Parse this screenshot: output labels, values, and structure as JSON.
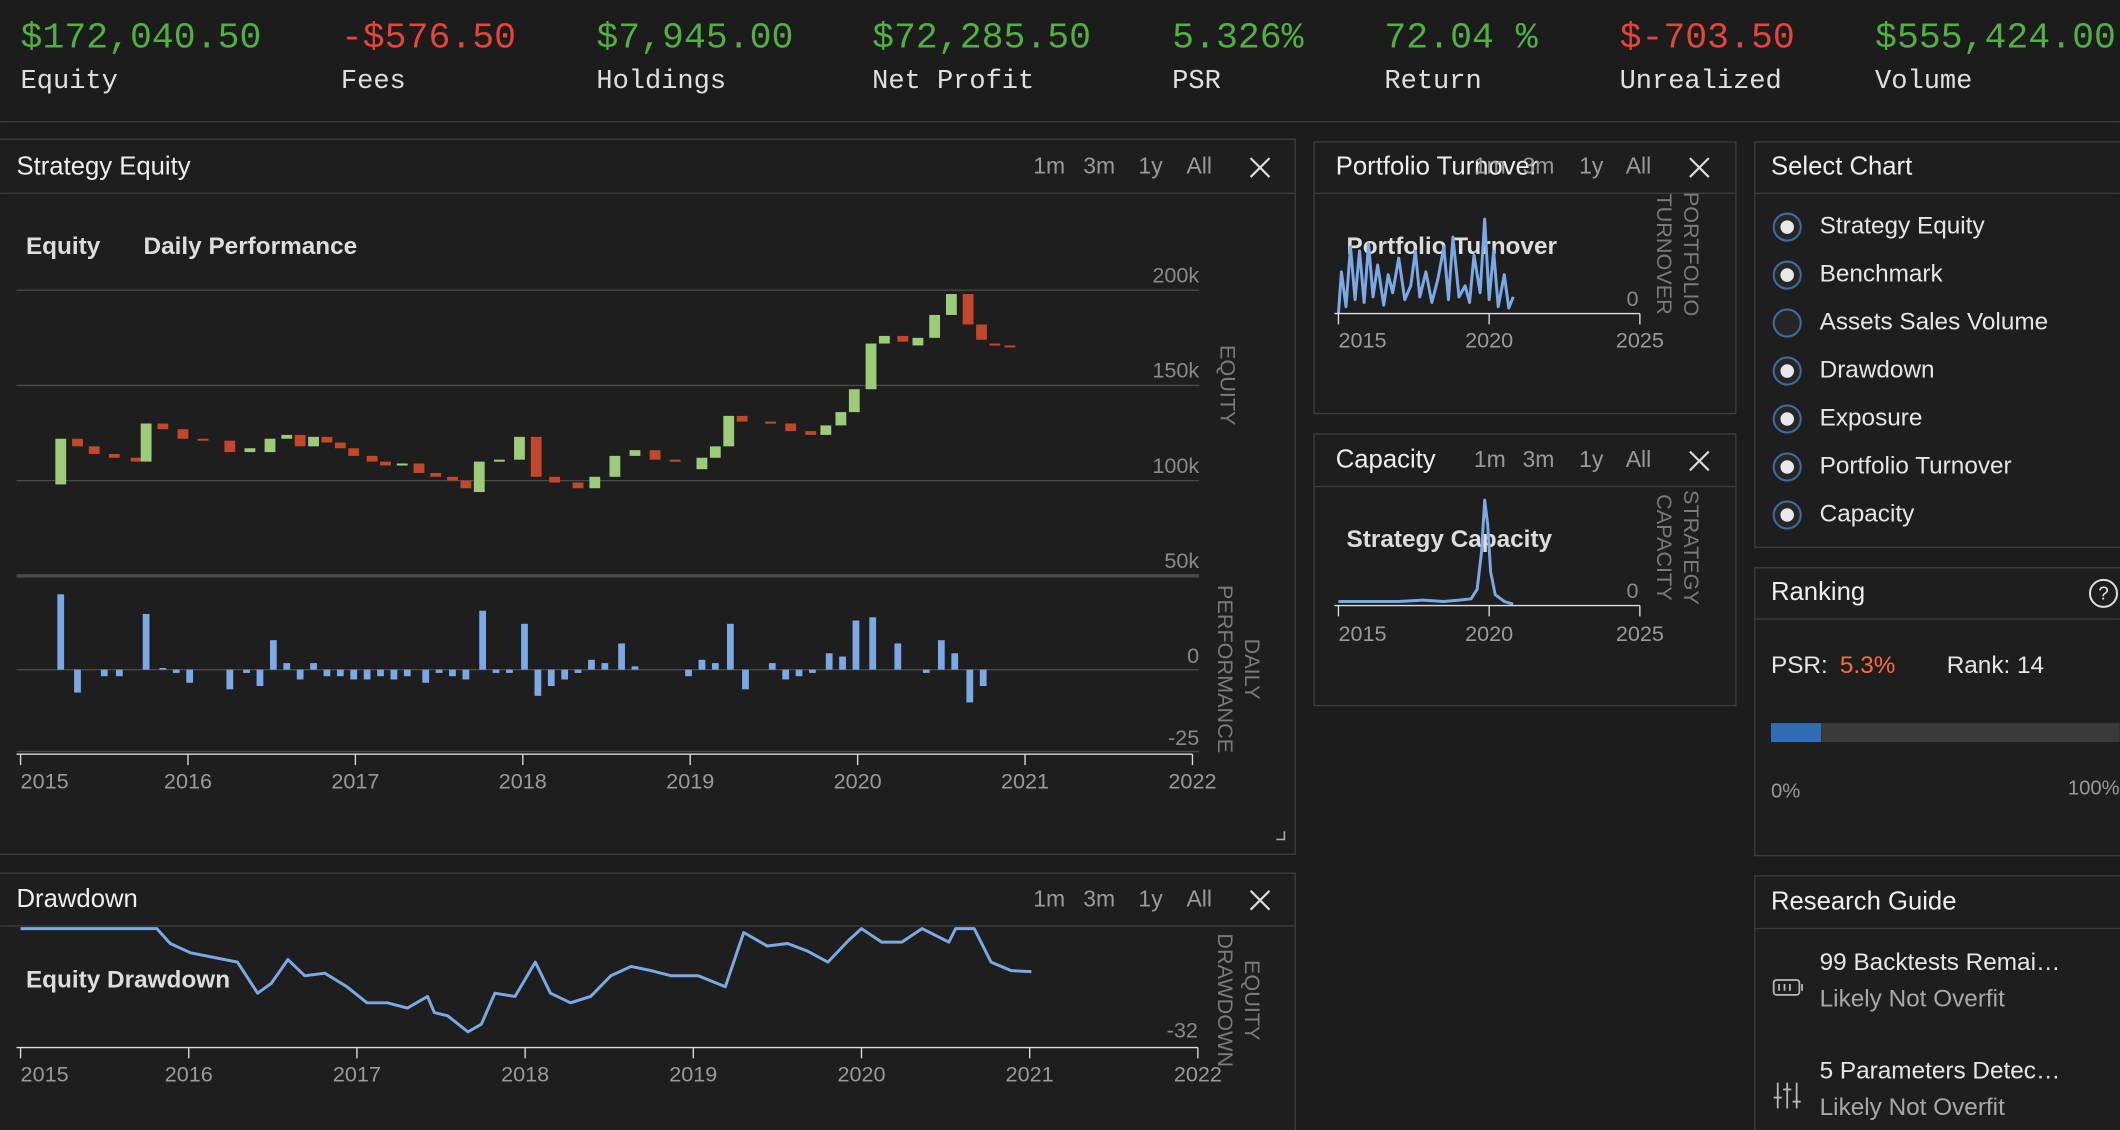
{
  "stats": [
    {
      "value": "$172,040.50",
      "label": "Equity",
      "color": "#52b043"
    },
    {
      "value": "-$576.50",
      "label": "Fees",
      "color": "#e5453a"
    },
    {
      "value": "$7,945.00",
      "label": "Holdings",
      "color": "#52b043"
    },
    {
      "value": "$72,285.50",
      "label": "Net Profit",
      "color": "#52b043"
    },
    {
      "value": "5.326%",
      "label": "PSR",
      "color": "#52b043"
    },
    {
      "value": "72.04 %",
      "label": "Return",
      "color": "#52b043"
    },
    {
      "value": "$-703.50",
      "label": "Unrealized",
      "color": "#e5453a"
    },
    {
      "value": "$555,424.00",
      "label": "Volume",
      "color": "#52b043"
    }
  ],
  "strategy_equity": {
    "title": "Strategy Equity",
    "ranges": [
      "1m",
      "3m",
      "1y",
      "All"
    ],
    "legend": [
      "Equity",
      "Daily Performance"
    ],
    "equity_axis_label": [
      "EQUITY"
    ],
    "performance_axis_label": [
      "DAILY",
      "PERFORMANCE"
    ],
    "xlim": [
      2015,
      2022
    ],
    "xticks": [
      2015,
      2016,
      2017,
      2018,
      2019,
      2020,
      2021,
      2022
    ],
    "ylim": [
      50000,
      214000
    ],
    "yticks": [
      {
        "value": 200000,
        "label": "200k"
      },
      {
        "value": 150000,
        "label": "150k"
      },
      {
        "value": 100000,
        "label": "100k"
      },
      {
        "value": 50000,
        "label": "50k"
      }
    ],
    "candles": {
      "up_color": "#9ccc7a",
      "down_color": "#c2472b",
      "x": [
        2015.24,
        2015.34,
        2015.44,
        2015.56,
        2015.69,
        2015.75,
        2015.85,
        2015.97,
        2016.09,
        2016.25,
        2016.37,
        2016.49,
        2016.59,
        2016.67,
        2016.75,
        2016.83,
        2016.91,
        2016.99,
        2017.1,
        2017.18,
        2017.28,
        2017.38,
        2017.48,
        2017.58,
        2017.66,
        2017.74,
        2017.86,
        2017.98,
        2018.08,
        2018.19,
        2018.33,
        2018.43,
        2018.55,
        2018.67,
        2018.79,
        2018.91,
        2019.07,
        2019.15,
        2019.23,
        2019.31,
        2019.48,
        2019.6,
        2019.72,
        2019.81,
        2019.9,
        2019.98,
        2020.08,
        2020.16,
        2020.27,
        2020.36,
        2020.46,
        2020.56,
        2020.66,
        2020.74,
        2020.82,
        2020.91
      ],
      "open": [
        98000,
        122000,
        118000,
        114000,
        112000,
        110000,
        130000,
        127000,
        122000,
        121000,
        115000,
        115000,
        122000,
        124000,
        118000,
        123000,
        120000,
        117000,
        113000,
        110000,
        108000,
        109000,
        104000,
        102000,
        100000,
        94000,
        110000,
        111000,
        123000,
        102000,
        99000,
        96000,
        102000,
        113000,
        116000,
        111000,
        106000,
        112000,
        118000,
        134000,
        131000,
        130000,
        126000,
        124000,
        129000,
        136000,
        148000,
        172000,
        176000,
        171000,
        175000,
        187000,
        198000,
        182000,
        172000,
        171000
      ],
      "close": [
        122000,
        118000,
        114000,
        112000,
        110000,
        130000,
        127000,
        122000,
        121000,
        115000,
        117000,
        122000,
        124000,
        118000,
        123000,
        120000,
        117000,
        113000,
        110000,
        108000,
        109000,
        104000,
        102000,
        100000,
        96000,
        110000,
        111000,
        123000,
        102000,
        99000,
        96000,
        102000,
        113000,
        116000,
        111000,
        110000,
        112000,
        118000,
        134000,
        131000,
        130000,
        126000,
        124000,
        129000,
        136000,
        148000,
        172000,
        176000,
        173000,
        175000,
        187000,
        198000,
        182000,
        174000,
        171000,
        170000
      ]
    },
    "performance": {
      "color": "#7ba9e6",
      "ylim": [
        -25,
        27
      ],
      "yticks": [
        0,
        -25
      ],
      "x": [
        2015.24,
        2015.34,
        2015.5,
        2015.59,
        2015.75,
        2015.85,
        2015.93,
        2016.01,
        2016.25,
        2016.35,
        2016.43,
        2016.51,
        2016.59,
        2016.67,
        2016.75,
        2016.83,
        2016.91,
        2016.99,
        2017.07,
        2017.15,
        2017.23,
        2017.31,
        2017.42,
        2017.5,
        2017.58,
        2017.66,
        2017.76,
        2017.84,
        2017.92,
        2018.01,
        2018.09,
        2018.17,
        2018.25,
        2018.33,
        2018.41,
        2018.49,
        2018.59,
        2018.67,
        2018.99,
        2019.07,
        2019.15,
        2019.24,
        2019.33,
        2019.49,
        2019.57,
        2019.65,
        2019.73,
        2019.83,
        2019.91,
        2019.99,
        2020.09,
        2020.24,
        2020.41,
        2020.5,
        2020.58,
        2020.67,
        2020.75
      ],
      "values": [
        23,
        -7,
        -2,
        -2,
        17,
        0.5,
        -1,
        -4,
        -6,
        -1,
        -5,
        9,
        2,
        -3,
        2,
        -2,
        -2,
        -3,
        -3,
        -2,
        -3,
        -2,
        -4,
        -1,
        -2,
        -3,
        18,
        -1,
        -1,
        14,
        -8,
        -5,
        -3,
        -1,
        3,
        2,
        8,
        1,
        -2,
        3,
        2,
        14,
        -6,
        2,
        -3,
        -2,
        -1,
        5,
        4,
        15,
        16,
        8,
        -1,
        9,
        5,
        -10,
        -5
      ]
    }
  },
  "drawdown": {
    "title": "Drawdown",
    "ranges": [
      "1m",
      "3m",
      "1y",
      "All"
    ],
    "legend": "Equity Drawdown",
    "axis_label": [
      "EQUITY",
      "DRAWDOWN"
    ],
    "color": "#7ba9e6",
    "xlim": [
      2015,
      2022
    ],
    "xticks": [
      2015,
      2016,
      2017,
      2018,
      2019,
      2020,
      2021,
      2022
    ],
    "ylim": [
      -36,
      0
    ],
    "yticks": [
      -32
    ],
    "x": [
      2015,
      2015.77,
      2015.81,
      2015.89,
      2016.01,
      2016.29,
      2016.41,
      2016.49,
      2016.59,
      2016.69,
      2016.81,
      2016.94,
      2017.06,
      2017.18,
      2017.3,
      2017.42,
      2017.46,
      2017.54,
      2017.66,
      2017.74,
      2017.82,
      2017.94,
      2018.06,
      2018.15,
      2018.27,
      2018.39,
      2018.51,
      2018.63,
      2018.75,
      2018.87,
      2019.03,
      2019.19,
      2019.3,
      2019.44,
      2019.56,
      2019.68,
      2019.8,
      2019.92,
      2020.0,
      2020.12,
      2020.24,
      2020.36,
      2020.52,
      2020.56,
      2020.67,
      2020.77,
      2020.89,
      2021.01
    ],
    "values": [
      0,
      0,
      0,
      -4.6,
      -7.5,
      -10.4,
      -20,
      -17,
      -9.6,
      -14.6,
      -13.8,
      -18,
      -23,
      -23,
      -24.6,
      -21,
      -26,
      -27,
      -32,
      -29.6,
      -20,
      -21,
      -10.4,
      -20,
      -23,
      -21,
      -14.6,
      -11.7,
      -13,
      -14.6,
      -14.6,
      -18,
      -1.2,
      -5.4,
      -4.6,
      -7,
      -10.4,
      -3.8,
      0,
      -4.2,
      -4.2,
      0,
      -4.2,
      0,
      0,
      -10.4,
      -13,
      -13.3
    ]
  },
  "portfolio_turnover": {
    "title": "Portfolio Turnover",
    "ranges": [
      "1m",
      "3m",
      "1y",
      "All"
    ],
    "legend": "Portfolio Turnover",
    "axis_label": [
      "PORTFOLIO",
      "TURNOVER"
    ],
    "color": "#7ba9e6",
    "xlim": [
      2015,
      2025
    ],
    "xticks": [
      2015,
      2020,
      2025
    ],
    "ylim": [
      0,
      70
    ],
    "yticks": [
      0
    ],
    "x": [
      2015.0,
      2015.1,
      2015.25,
      2015.4,
      2015.55,
      2015.7,
      2015.85,
      2016.0,
      2016.15,
      2016.3,
      2016.5,
      2016.65,
      2016.8,
      2017.0,
      2017.2,
      2017.4,
      2017.55,
      2017.7,
      2017.9,
      2018.1,
      2018.3,
      2018.5,
      2018.65,
      2018.8,
      2019.0,
      2019.2,
      2019.35,
      2019.5,
      2019.7,
      2019.85,
      2020.0,
      2020.15,
      2020.3,
      2020.5,
      2020.65,
      2020.8
    ],
    "values": [
      0,
      30,
      5,
      48,
      10,
      45,
      8,
      50,
      12,
      35,
      6,
      28,
      15,
      40,
      10,
      20,
      45,
      12,
      30,
      8,
      25,
      48,
      10,
      55,
      12,
      20,
      8,
      42,
      15,
      68,
      10,
      45,
      5,
      28,
      4,
      12
    ]
  },
  "capacity": {
    "title": "Capacity",
    "ranges": [
      "1m",
      "3m",
      "1y",
      "All"
    ],
    "legend": "Strategy Capacity",
    "axis_label": [
      "STRATEGY",
      "CAPACITY"
    ],
    "color": "#7ba9e6",
    "xlim": [
      2015,
      2025
    ],
    "xticks": [
      2015,
      2020,
      2025
    ],
    "ylim": [
      0,
      80
    ],
    "yticks": [
      0
    ],
    "x": [
      2015,
      2016,
      2017,
      2017.8,
      2018.5,
      2019.0,
      2019.4,
      2019.6,
      2019.75,
      2019.85,
      2019.95,
      2020.05,
      2020.2,
      2020.5,
      2020.8
    ],
    "values": [
      3,
      3,
      3,
      4,
      3,
      4,
      5,
      12,
      40,
      78,
      60,
      25,
      8,
      3,
      1
    ]
  },
  "select_chart": {
    "title": "Select Chart",
    "items": [
      {
        "label": "Strategy Equity",
        "checked": true
      },
      {
        "label": "Benchmark",
        "checked": true
      },
      {
        "label": "Assets Sales Volume",
        "checked": false
      },
      {
        "label": "Drawdown",
        "checked": true
      },
      {
        "label": "Exposure",
        "checked": true
      },
      {
        "label": "Portfolio Turnover",
        "checked": true
      },
      {
        "label": "Capacity",
        "checked": true
      }
    ]
  },
  "ranking": {
    "title": "Ranking",
    "help": "?",
    "psr_label": "PSR:",
    "psr_value": "5.3%",
    "rank": "Rank: 14",
    "scale_min": "0%",
    "scale_max": "100%"
  },
  "research_guide": {
    "title": "Research Guide",
    "items": [
      {
        "title": "99 Backtests Remai…",
        "status": "Likely Not Overfit"
      },
      {
        "title": "5 Parameters Detec…",
        "status": "Likely Not Overfit"
      }
    ]
  }
}
